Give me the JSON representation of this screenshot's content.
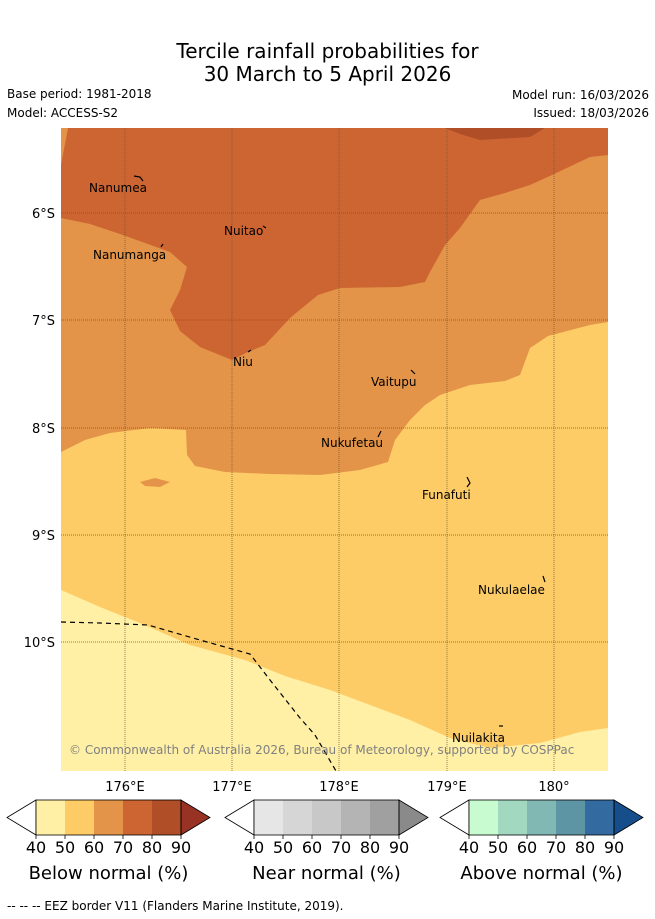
{
  "title_line1": "Tercile rainfall probabilities for",
  "title_line2": "30 March to 5 April 2026",
  "base_period": "Base period: 1981-2018",
  "model": "Model: ACCESS-S2",
  "model_run": "Model run: 16/03/2026",
  "issued": "Issued: 18/03/2026",
  "lat_labels": [
    "6°S",
    "7°S",
    "8°S",
    "9°S",
    "10°S"
  ],
  "lon_labels": [
    "176°E",
    "177°E",
    "178°E",
    "179°E",
    "180°"
  ],
  "places": [
    "Nanumea",
    "Nuitao",
    "Nanumanga",
    "Niu",
    "Vaitupu",
    "Nukufetau",
    "Funafuti",
    "Nukulaelae",
    "Nuilakita"
  ],
  "copyright": "© Commonwealth of Australia 2026, Bureau of Meteorology, supported by COSPPac",
  "legends": [
    {
      "name": "Below normal (%)",
      "ticks": [
        "40",
        "50",
        "60",
        "70",
        "80",
        "90"
      ],
      "colors": [
        "#fff0a6",
        "#fecc66",
        "#e39448",
        "#cd6533",
        "#b04e28",
        "#973225"
      ]
    },
    {
      "name": "Near normal (%)",
      "ticks": [
        "40",
        "50",
        "60",
        "70",
        "80",
        "90"
      ],
      "colors": [
        "#e6e6e6",
        "#d6d6d6",
        "#c8c8c8",
        "#b4b4b4",
        "#a0a0a0",
        "#8a8a8a"
      ]
    },
    {
      "name": "Above normal (%)",
      "ticks": [
        "40",
        "50",
        "60",
        "70",
        "80",
        "90"
      ],
      "colors": [
        "#c8fcd0",
        "#a2d8c0",
        "#82b8b4",
        "#5d95a4",
        "#336aa0",
        "#154e8b"
      ]
    }
  ],
  "footer": "--  --  -- EEZ border V11 (Flanders Marine Institute, 2019)."
}
